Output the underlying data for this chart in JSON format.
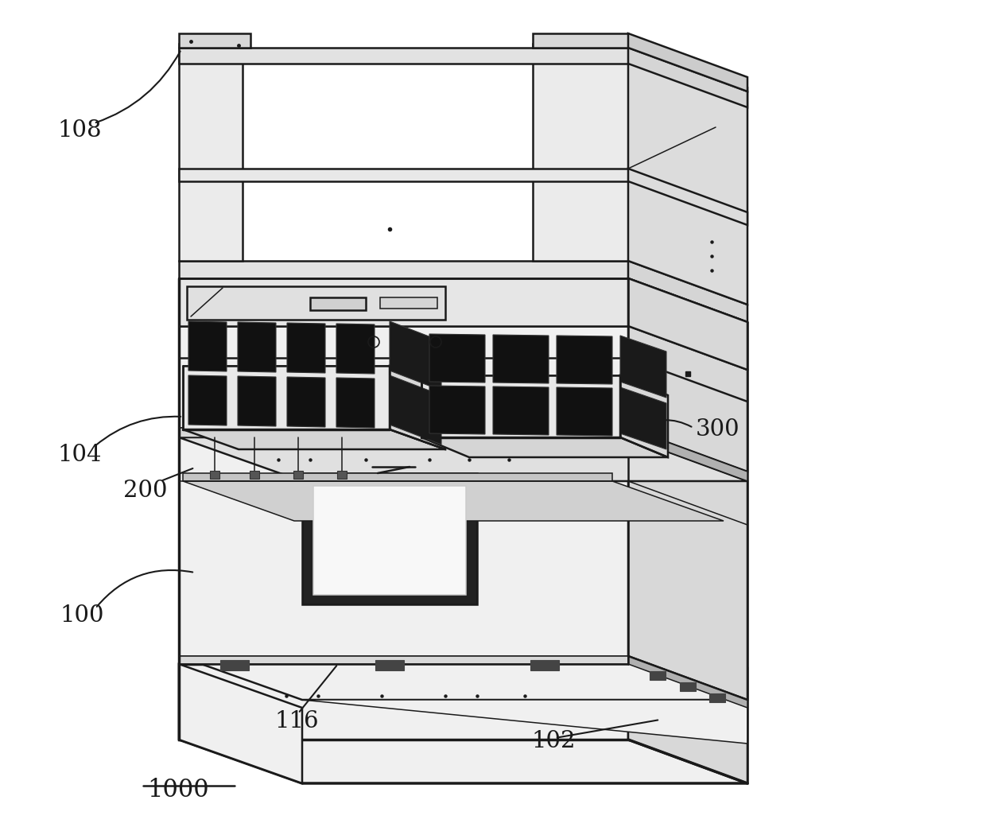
{
  "bg_color": "#ffffff",
  "line_color": "#1a1a1a",
  "figsize": [
    12.4,
    10.5
  ],
  "dpi": 100,
  "lw_main": 1.8,
  "lw_thick": 2.5,
  "lw_thin": 1.1,
  "gray_light": "#f0f0f0",
  "gray_mid": "#d8d8d8",
  "gray_dark": "#b0b0b0",
  "gray_panel": "#e6e6e6",
  "black_slot": "#111111",
  "hinge_color": "#444444"
}
